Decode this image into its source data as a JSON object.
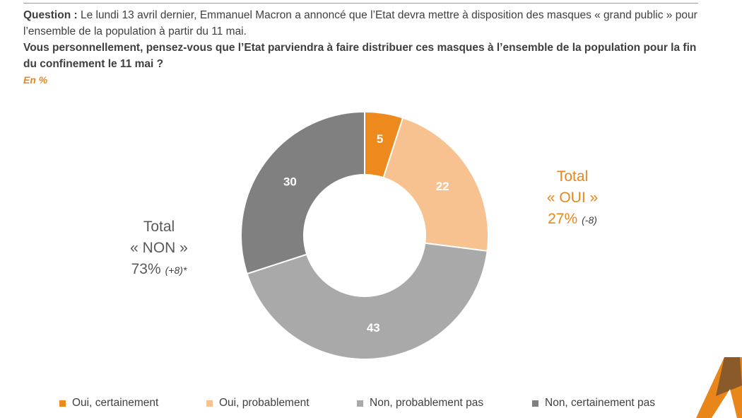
{
  "question": {
    "prefix": "Question :",
    "line1": " Le lundi 13 avril dernier, Emmanuel Macron a annoncé que l’Etat devra mettre à disposition des masques « grand public » pour l’ensemble de la population à partir du 11 mai.",
    "line2": "Vous personnellement, pensez-vous que l’Etat parviendra à faire distribuer ces masques à l’ensemble de la population pour la fin du confinement le 11 mai ?",
    "unit": "En %"
  },
  "chart_data": {
    "type": "pie",
    "variant": "donut",
    "unit": "%",
    "categories": [
      "Oui, certainement",
      "Oui, probablement",
      "Non, probablement pas",
      "Non, certainement pas"
    ],
    "values": [
      5,
      22,
      43,
      30
    ],
    "colors": [
      "#ee8a1d",
      "#f8c290",
      "#a9a9a9",
      "#808080"
    ],
    "legend_position": "bottom"
  },
  "totals": {
    "oui": {
      "title": "Total",
      "label": "« OUI »",
      "value": "27%",
      "delta": "(-8)"
    },
    "non": {
      "title": "Total",
      "label": "« NON »",
      "value": "73%",
      "delta": "(+8)*"
    }
  },
  "logo": {
    "icon": "brand-logo-icon"
  }
}
